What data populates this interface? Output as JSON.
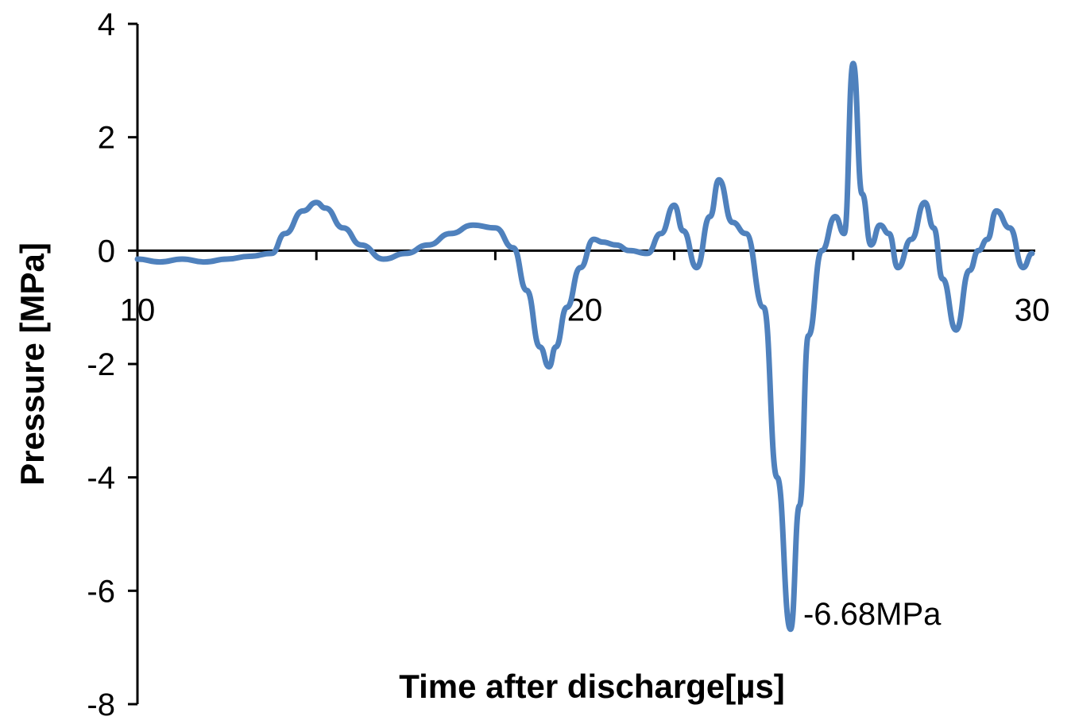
{
  "chart_data": {
    "type": "line",
    "xlabel": "Time after discharge[µs]",
    "ylabel": "Pressure [MPa]",
    "xlim": [
      10,
      30
    ],
    "ylim": [
      -8,
      4
    ],
    "xticks": [
      10,
      20,
      30
    ],
    "xtick_labels": [
      "10",
      "20",
      "30"
    ],
    "yticks": [
      4,
      2,
      0,
      -2,
      -4,
      -6,
      -8
    ],
    "ytick_labels": [
      "4",
      "2",
      "0",
      "-2",
      "-4",
      "-6",
      "-8"
    ],
    "x_minor_ticks": [
      14,
      18,
      22,
      26
    ],
    "grid": false,
    "legend": "none",
    "series_color": "#4f81bd",
    "series": [
      {
        "x": [
          10.0,
          10.5,
          11.0,
          11.5,
          12.0,
          12.5,
          13.0,
          13.3,
          13.7,
          14.0,
          14.2,
          14.6,
          15.0,
          15.5,
          16.0,
          16.5,
          17.0,
          17.5,
          18.0,
          18.4,
          18.7,
          19.0,
          19.2,
          19.35,
          19.6,
          19.9,
          20.2,
          20.4,
          20.7,
          21.0,
          21.4,
          21.7,
          22.0,
          22.2,
          22.5,
          22.8,
          23.0,
          23.3,
          23.6,
          24.0,
          24.3,
          24.6,
          24.8,
          25.0,
          25.3,
          25.6,
          25.8,
          26.0,
          26.2,
          26.4,
          26.6,
          26.8,
          27.0,
          27.3,
          27.6,
          27.8,
          28.0,
          28.3,
          28.6,
          28.8,
          29.0,
          29.2,
          29.5,
          29.8,
          30.0
        ],
        "y": [
          -0.15,
          -0.2,
          -0.15,
          -0.2,
          -0.15,
          -0.1,
          -0.05,
          0.3,
          0.7,
          0.85,
          0.75,
          0.4,
          0.1,
          -0.15,
          -0.05,
          0.1,
          0.3,
          0.45,
          0.4,
          0.05,
          -0.7,
          -1.7,
          -2.05,
          -1.7,
          -1.0,
          -0.3,
          0.2,
          0.15,
          0.1,
          0.0,
          -0.05,
          0.3,
          0.8,
          0.35,
          -0.3,
          0.6,
          1.25,
          0.5,
          0.3,
          -1.0,
          -4.0,
          -6.68,
          -4.5,
          -1.5,
          0.0,
          0.6,
          0.3,
          3.3,
          1.0,
          0.1,
          0.45,
          0.3,
          -0.3,
          0.2,
          0.85,
          0.4,
          -0.5,
          -1.4,
          -0.35,
          0.0,
          0.2,
          0.7,
          0.4,
          -0.3,
          -0.05
        ]
      }
    ],
    "annotations": [
      {
        "text": "-6.68MPa",
        "x": 24.6,
        "y": -6.68
      }
    ]
  }
}
